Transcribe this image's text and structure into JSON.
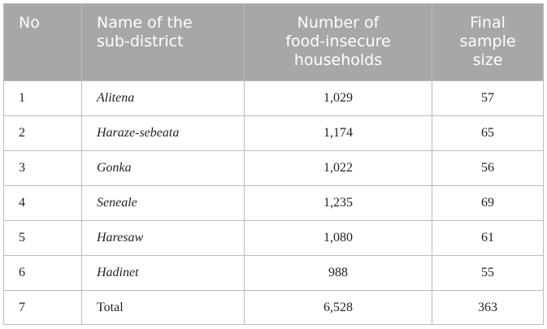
{
  "table": {
    "headers": {
      "no": "No",
      "name": [
        "Name of the",
        "sub-district"
      ],
      "households": [
        "Number of",
        "food-insecure",
        "households"
      ],
      "sample": [
        "Final",
        "sample",
        "size"
      ]
    },
    "rows": [
      {
        "no": "1",
        "name": "Alitena",
        "households": "1,029",
        "sample": "57"
      },
      {
        "no": "2",
        "name": "Haraze-sebeata",
        "households": "1,174",
        "sample": "65"
      },
      {
        "no": "3",
        "name": "Gonka",
        "households": "1,022",
        "sample": "56"
      },
      {
        "no": "4",
        "name": "Seneale",
        "households": "1,235",
        "sample": "69"
      },
      {
        "no": "5",
        "name": "Haresaw",
        "households": "1,080",
        "sample": "61"
      },
      {
        "no": "6",
        "name": "Hadinet",
        "households": "988",
        "sample": "55"
      },
      {
        "no": "7",
        "name": "Total",
        "households": "6,528",
        "sample": "363"
      }
    ]
  },
  "colors": {
    "header_bg": "#a7a7a7",
    "header_text": "#ffffff",
    "border": "#bcbcbc",
    "body_text": "#222222"
  }
}
